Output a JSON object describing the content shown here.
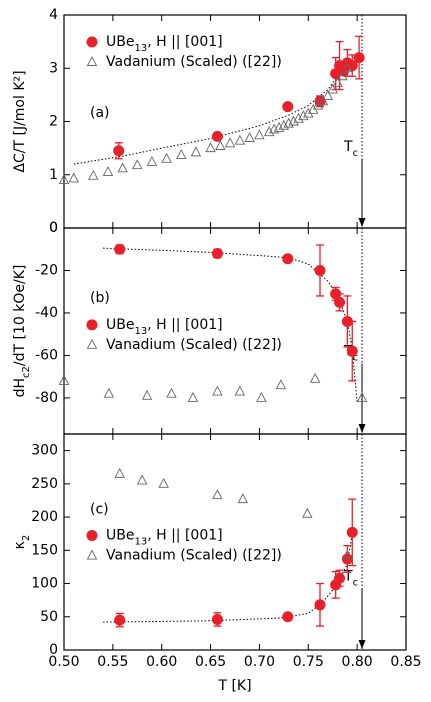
{
  "chart_data": [
    {
      "type": "scatter",
      "panel_label": "(a)",
      "ylabel": "ΔC/T [J/mol K²]",
      "xlim": [
        0.5,
        0.85
      ],
      "xticks": [
        {
          "value": 0.5,
          "label": "0.50"
        },
        {
          "value": 0.55,
          "label": "0.55"
        },
        {
          "value": 0.6,
          "label": "0.60"
        },
        {
          "value": 0.65,
          "label": "0.65"
        },
        {
          "value": 0.7,
          "label": "0.70"
        },
        {
          "value": 0.75,
          "label": "0.75"
        },
        {
          "value": 0.8,
          "label": "0.80"
        },
        {
          "value": 0.85,
          "label": "0.85"
        }
      ],
      "x_tick_labels": false,
      "ylim": [
        0,
        4
      ],
      "yticks": [
        0,
        1,
        2,
        3,
        4
      ],
      "legend": "upper left",
      "series": [
        {
          "name": [
            "UBe",
            "13",
            ", H || [001]"
          ],
          "color": "#e8202a",
          "marker": "circle",
          "x": [
            0.556,
            0.657,
            0.729,
            0.762,
            0.778,
            0.782,
            0.786,
            0.79,
            0.795,
            0.802
          ],
          "values": [
            1.45,
            1.72,
            2.28,
            2.38,
            2.9,
            3.05,
            2.95,
            3.1,
            3.05,
            3.2
          ],
          "errors": [
            0.15,
            null,
            null,
            0.1,
            0.3,
            0.45,
            null,
            0.25,
            0.2,
            0.4
          ]
        },
        {
          "name": [
            "Vadanium (Scaled) ([22])"
          ],
          "color": "#666666",
          "marker": "triangle",
          "x": [
            0.5,
            0.51,
            0.53,
            0.545,
            0.56,
            0.575,
            0.59,
            0.605,
            0.62,
            0.635,
            0.65,
            0.66,
            0.67,
            0.68,
            0.69,
            0.7,
            0.71,
            0.715,
            0.72,
            0.725,
            0.73,
            0.735,
            0.74,
            0.745,
            0.75,
            0.755,
            0.76,
            0.765,
            0.77,
            0.775,
            0.78,
            0.785,
            0.79
          ],
          "values": [
            0.9,
            0.93,
            0.98,
            1.05,
            1.12,
            1.18,
            1.24,
            1.3,
            1.37,
            1.42,
            1.5,
            1.54,
            1.59,
            1.64,
            1.69,
            1.74,
            1.8,
            1.85,
            1.88,
            1.92,
            1.96,
            2.0,
            2.05,
            2.1,
            2.15,
            2.22,
            2.3,
            2.38,
            2.48,
            2.6,
            2.72,
            2.85,
            3.0
          ]
        }
      ],
      "fit": {
        "x": [
          0.51,
          0.56,
          0.6,
          0.65,
          0.7,
          0.73,
          0.75,
          0.77,
          0.78,
          0.79,
          0.8
        ],
        "values": [
          1.2,
          1.35,
          1.5,
          1.68,
          1.92,
          2.12,
          2.3,
          2.6,
          2.85,
          3.05,
          3.25
        ]
      },
      "vline": 0.805,
      "annotation": [
        "T",
        "c"
      ]
    },
    {
      "type": "scatter",
      "panel_label": "(b)",
      "ylabel": [
        "dH",
        "c2",
        "/dT [10 kOe/K]"
      ],
      "xlim": [
        0.5,
        0.85
      ],
      "xticks": [
        {
          "value": 0.5,
          "label": "0.50"
        },
        {
          "value": 0.55,
          "label": "0.55"
        },
        {
          "value": 0.6,
          "label": "0.60"
        },
        {
          "value": 0.65,
          "label": "0.65"
        },
        {
          "value": 0.7,
          "label": "0.70"
        },
        {
          "value": 0.75,
          "label": "0.75"
        },
        {
          "value": 0.8,
          "label": "0.80"
        },
        {
          "value": 0.85,
          "label": "0.85"
        }
      ],
      "x_tick_labels": false,
      "ylim": [
        -97,
        0
      ],
      "yticks": [
        -80,
        -60,
        -40,
        -20,
        0
      ],
      "legend": "center left",
      "series": [
        {
          "name": [
            "UBe",
            "13",
            ", H || [001]"
          ],
          "color": "#e8202a",
          "marker": "circle",
          "x": [
            0.557,
            0.657,
            0.729,
            0.762,
            0.778,
            0.782,
            0.79,
            0.795
          ],
          "values": [
            -10,
            -12,
            -14.5,
            -20,
            -31,
            -35,
            -44,
            -58
          ],
          "errors": [
            2,
            2,
            1.5,
            12,
            3,
            4,
            12,
            14
          ]
        },
        {
          "name": [
            "Vanadium (Scaled) ([22])"
          ],
          "color": "#666666",
          "marker": "triangle",
          "x": [
            0.5,
            0.546,
            0.585,
            0.61,
            0.632,
            0.657,
            0.68,
            0.702,
            0.722,
            0.757,
            0.805
          ],
          "values": [
            -72,
            -78,
            -79,
            -78,
            -80,
            -77,
            -77,
            -80,
            -74,
            -71,
            -80
          ]
        }
      ],
      "fit": {
        "x": [
          0.54,
          0.6,
          0.65,
          0.7,
          0.73,
          0.75,
          0.77,
          0.78,
          0.79,
          0.795,
          0.8
        ],
        "values": [
          -9.5,
          -10.5,
          -11.5,
          -13,
          -14,
          -17,
          -25,
          -32,
          -44,
          -57,
          -82
        ]
      },
      "vline": 0.805,
      "annotation": [
        "T",
        "c"
      ]
    },
    {
      "type": "scatter",
      "panel_label": "(c)",
      "ylabel": [
        "κ",
        "2"
      ],
      "xlabel": "T [K]",
      "xlim": [
        0.5,
        0.85
      ],
      "xticks": [
        {
          "value": 0.5,
          "label": "0.50"
        },
        {
          "value": 0.55,
          "label": "0.55"
        },
        {
          "value": 0.6,
          "label": "0.60"
        },
        {
          "value": 0.65,
          "label": "0.65"
        },
        {
          "value": 0.7,
          "label": "0.70"
        },
        {
          "value": 0.75,
          "label": "0.75"
        },
        {
          "value": 0.8,
          "label": "0.80"
        },
        {
          "value": 0.85,
          "label": "0.85"
        }
      ],
      "x_tick_labels": true,
      "ylim": [
        0,
        325
      ],
      "yticks": [
        0,
        50,
        100,
        150,
        200,
        250,
        300
      ],
      "legend": "center left",
      "series": [
        {
          "name": [
            "UBe",
            "13",
            ", H || [001]"
          ],
          "color": "#e8202a",
          "marker": "circle",
          "x": [
            0.557,
            0.657,
            0.729,
            0.762,
            0.778,
            0.782,
            0.79,
            0.795
          ],
          "values": [
            45,
            46,
            50,
            68,
            98,
            108,
            137,
            177
          ],
          "errors": [
            10,
            10,
            4,
            32,
            20,
            12,
            20,
            50
          ]
        },
        {
          "name": [
            "Vanadium (Scaled) ([22])"
          ],
          "color": "#666666",
          "marker": "triangle",
          "x": [
            0.557,
            0.58,
            0.602,
            0.657,
            0.683,
            0.749,
            0.79
          ],
          "values": [
            265,
            255,
            250,
            233,
            227,
            205,
            142
          ]
        }
      ],
      "fit": {
        "x": [
          0.54,
          0.6,
          0.65,
          0.72,
          0.75,
          0.765,
          0.78,
          0.79,
          0.795
        ],
        "values": [
          42,
          43,
          44,
          48,
          55,
          72,
          100,
          130,
          175
        ]
      },
      "vline": 0.805,
      "annotation": [
        "T",
        "c"
      ]
    }
  ]
}
